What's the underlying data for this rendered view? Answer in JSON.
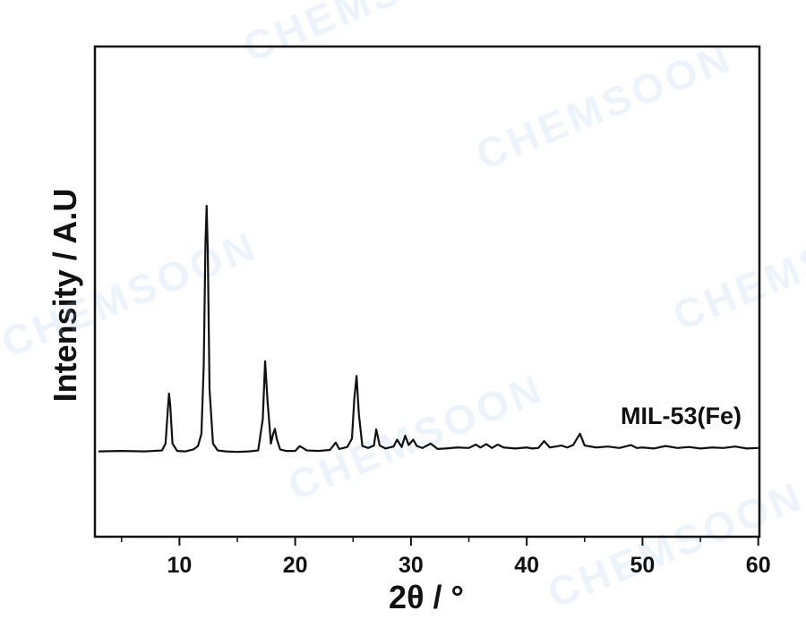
{
  "chart_data": {
    "type": "line",
    "watermark": "CHEMSOON",
    "xlabel": "2θ / °",
    "ylabel": "Intensity / A.U",
    "xlim": [
      2.7,
      60.1
    ],
    "ylim": [
      0,
      100
    ],
    "xticks": [
      10,
      20,
      30,
      40,
      50,
      60
    ],
    "xminorticks": [
      5,
      15,
      25,
      35,
      45,
      55
    ],
    "x": [
      3,
      5,
      7,
      8.5,
      8.8,
      9.0,
      9.1,
      9.2,
      9.4,
      9.8,
      10.5,
      11.2,
      11.6,
      11.9,
      12.1,
      12.25,
      12.35,
      12.45,
      12.6,
      12.9,
      13.3,
      14,
      15,
      16,
      16.8,
      17.2,
      17.4,
      17.6,
      17.9,
      18.1,
      18.25,
      18.4,
      18.7,
      19.2,
      20,
      20.4,
      21,
      22,
      23,
      23.5,
      23.8,
      24.5,
      24.9,
      25.1,
      25.3,
      25.5,
      25.8,
      26.3,
      26.8,
      27.0,
      27.3,
      27.8,
      28.5,
      28.8,
      29.2,
      29.5,
      29.8,
      30.2,
      30.5,
      31,
      31.7,
      32.3,
      33,
      34,
      35,
      35.6,
      36,
      36.5,
      37,
      37.5,
      38,
      39,
      40,
      40.5,
      41,
      41.5,
      42,
      43,
      43.5,
      44,
      44.6,
      45,
      46,
      47,
      48,
      49,
      49.5,
      50,
      51,
      52,
      53,
      54,
      55,
      56,
      57,
      58,
      59,
      60
    ],
    "series": [
      {
        "name": "MIL-53(Fe)",
        "color": "#111111",
        "values": [
          17.4,
          17.5,
          17.4,
          17.6,
          19,
          26,
          29.2,
          27,
          19,
          17.5,
          17.4,
          17.8,
          18.5,
          21,
          35,
          60,
          67.5,
          58,
          30,
          19,
          17.6,
          17.4,
          17.3,
          17.4,
          17.6,
          24,
          35.8,
          28,
          19,
          21,
          22,
          20,
          17.8,
          17.5,
          17.5,
          18.5,
          17.6,
          17.5,
          17.7,
          19.2,
          17.9,
          18.3,
          20,
          28,
          32.8,
          25,
          18.5,
          18.1,
          18.6,
          21.9,
          18.6,
          18,
          18.4,
          19.8,
          18.3,
          20.6,
          18.7,
          19.8,
          18.5,
          18.1,
          19,
          17.9,
          18,
          18.2,
          18.1,
          18.8,
          18.2,
          18.9,
          18.1,
          18.8,
          18.2,
          18,
          18.2,
          18,
          18.1,
          19.5,
          18.2,
          18.6,
          18.2,
          18.7,
          21,
          18.6,
          18.2,
          18.4,
          18.1,
          18.7,
          18.1,
          18.2,
          18,
          18.5,
          18.1,
          18.3,
          18,
          18.2,
          18.1,
          18.4,
          18,
          18.1
        ]
      }
    ]
  }
}
